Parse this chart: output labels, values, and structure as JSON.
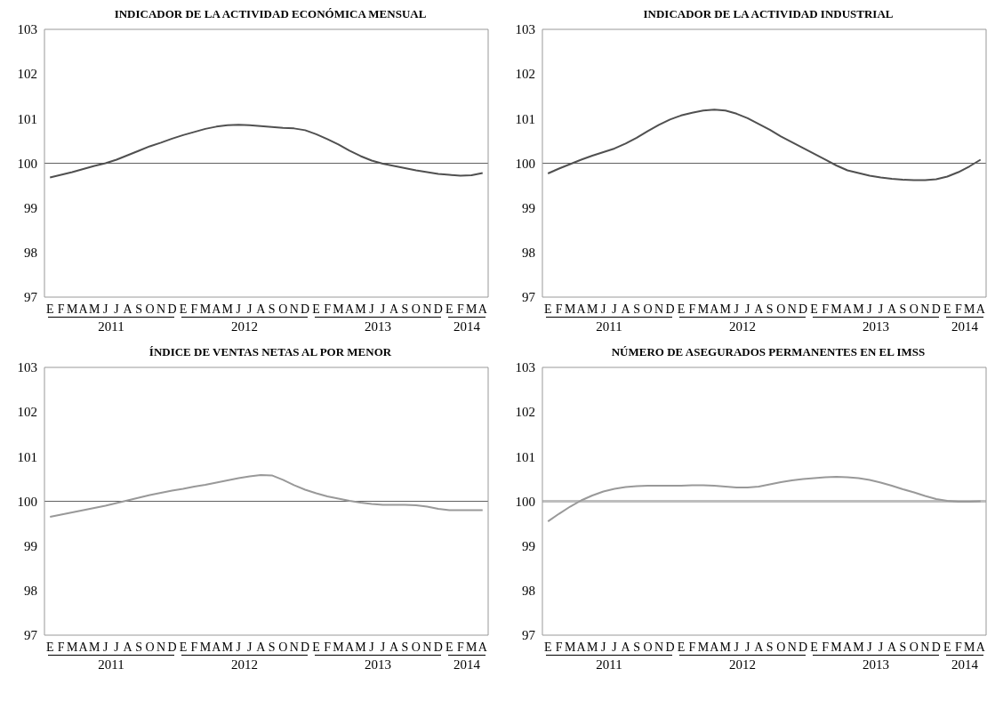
{
  "chart_data": [
    {
      "type": "line",
      "title": "INDICADOR DE LA ACTIVIDAD  ECONÓMICA MENSUAL",
      "categories": [
        "E",
        "F",
        "M",
        "A",
        "M",
        "J",
        "J",
        "A",
        "S",
        "O",
        "N",
        "D",
        "E",
        "F",
        "M",
        "A",
        "M",
        "J",
        "J",
        "A",
        "S",
        "O",
        "N",
        "D",
        "E",
        "F",
        "M",
        "A",
        "M",
        "J",
        "J",
        "A",
        "S",
        "O",
        "N",
        "D",
        "E",
        "F",
        "M",
        "A"
      ],
      "color": "#505050",
      "values": [
        99.68,
        99.74,
        99.8,
        99.87,
        99.94,
        100.0,
        100.08,
        100.18,
        100.28,
        100.38,
        100.46,
        100.55,
        100.63,
        100.7,
        100.77,
        100.82,
        100.85,
        100.86,
        100.85,
        100.83,
        100.81,
        100.79,
        100.78,
        100.74,
        100.65,
        100.54,
        100.42,
        100.28,
        100.16,
        100.06,
        99.99,
        99.94,
        99.89,
        99.84,
        99.8,
        99.76,
        99.74,
        99.72,
        99.73,
        99.78
      ],
      "ylim": [
        97,
        103
      ],
      "yticks": [
        97,
        98,
        99,
        100,
        101,
        102,
        103
      ],
      "grid": false,
      "legend": false,
      "marker": "none",
      "ref_lines": [
        {
          "axis": "y",
          "value": 100,
          "color": "#606060"
        }
      ],
      "annotations": [
        "2011",
        "2012",
        "2013",
        "2014"
      ]
    },
    {
      "type": "line",
      "title": "INDICADOR DE LA ACTIVIDAD INDUSTRIAL",
      "categories": [
        "E",
        "F",
        "M",
        "A",
        "M",
        "J",
        "J",
        "A",
        "S",
        "O",
        "N",
        "D",
        "E",
        "F",
        "M",
        "A",
        "M",
        "J",
        "J",
        "A",
        "S",
        "O",
        "N",
        "D",
        "E",
        "F",
        "M",
        "A",
        "M",
        "J",
        "J",
        "A",
        "S",
        "O",
        "N",
        "D",
        "E",
        "F",
        "M",
        "A"
      ],
      "color": "#505050",
      "values": [
        99.77,
        99.88,
        99.98,
        100.08,
        100.17,
        100.25,
        100.33,
        100.44,
        100.57,
        100.72,
        100.86,
        100.98,
        101.07,
        101.13,
        101.18,
        101.2,
        101.18,
        101.11,
        101.01,
        100.88,
        100.75,
        100.6,
        100.47,
        100.34,
        100.21,
        100.08,
        99.95,
        99.84,
        99.78,
        99.72,
        99.68,
        99.65,
        99.63,
        99.62,
        99.62,
        99.64,
        99.7,
        99.8,
        99.93,
        100.08
      ],
      "ylim": [
        97,
        103
      ],
      "yticks": [
        97,
        98,
        99,
        100,
        101,
        102,
        103
      ],
      "grid": false,
      "legend": false,
      "marker": "none",
      "ref_lines": [
        {
          "axis": "y",
          "value": 100,
          "color": "#606060"
        }
      ],
      "annotations": [
        "2011",
        "2012",
        "2013",
        "2014"
      ]
    },
    {
      "type": "line",
      "title": "ÍNDICE DE VENTAS NETAS AL POR MENOR",
      "categories": [
        "E",
        "F",
        "M",
        "A",
        "M",
        "J",
        "J",
        "A",
        "S",
        "O",
        "N",
        "D",
        "E",
        "F",
        "M",
        "A",
        "M",
        "J",
        "J",
        "A",
        "S",
        "O",
        "N",
        "D",
        "E",
        "F",
        "M",
        "A",
        "M",
        "J",
        "J",
        "A",
        "S",
        "O",
        "N",
        "D",
        "E",
        "F",
        "M",
        "A"
      ],
      "color": "#999999",
      "values": [
        99.65,
        99.7,
        99.75,
        99.8,
        99.85,
        99.9,
        99.96,
        100.02,
        100.08,
        100.14,
        100.19,
        100.24,
        100.28,
        100.33,
        100.37,
        100.42,
        100.47,
        100.52,
        100.56,
        100.59,
        100.58,
        100.48,
        100.36,
        100.26,
        100.18,
        100.11,
        100.06,
        100.01,
        99.97,
        99.94,
        99.92,
        99.92,
        99.92,
        99.91,
        99.88,
        99.83,
        99.8,
        99.8,
        99.8,
        99.8
      ],
      "ylim": [
        97,
        103
      ],
      "yticks": [
        97,
        98,
        99,
        100,
        101,
        102,
        103
      ],
      "grid": false,
      "legend": false,
      "marker": "none",
      "ref_lines": [
        {
          "axis": "y",
          "value": 100,
          "color": "#606060"
        }
      ],
      "annotations": [
        "2011",
        "2012",
        "2013",
        "2014"
      ]
    },
    {
      "type": "line",
      "title": "NÚMERO DE ASEGURADOS PERMANENTES EN EL IMSS",
      "categories": [
        "E",
        "F",
        "M",
        "A",
        "M",
        "J",
        "J",
        "A",
        "S",
        "O",
        "N",
        "D",
        "E",
        "F",
        "M",
        "A",
        "M",
        "J",
        "J",
        "A",
        "S",
        "O",
        "N",
        "D",
        "E",
        "F",
        "M",
        "A",
        "M",
        "J",
        "J",
        "A",
        "S",
        "O",
        "N",
        "D",
        "E",
        "F",
        "M",
        "A"
      ],
      "color": "#999999",
      "values": [
        99.55,
        99.72,
        99.88,
        100.02,
        100.13,
        100.22,
        100.28,
        100.32,
        100.34,
        100.35,
        100.35,
        100.35,
        100.35,
        100.36,
        100.36,
        100.35,
        100.33,
        100.31,
        100.31,
        100.33,
        100.38,
        100.43,
        100.47,
        100.5,
        100.52,
        100.54,
        100.55,
        100.54,
        100.52,
        100.48,
        100.42,
        100.35,
        100.27,
        100.2,
        100.12,
        100.05,
        100.01,
        99.99,
        99.99,
        100.0
      ],
      "ylim": [
        97,
        103
      ],
      "yticks": [
        97,
        98,
        99,
        100,
        101,
        102,
        103
      ],
      "grid": false,
      "legend": false,
      "marker": "none",
      "ref_lines": [
        {
          "axis": "y",
          "value": 100,
          "color": "#bdbdbd"
        }
      ],
      "annotations": [
        "2011",
        "2012",
        "2013",
        "2014"
      ]
    }
  ]
}
